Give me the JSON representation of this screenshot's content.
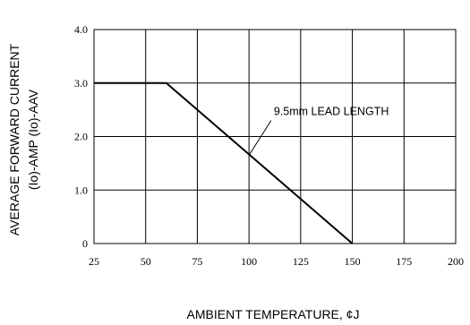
{
  "chart_data": {
    "type": "line",
    "title": "",
    "xlabel": "AMBIENT TEMPERATURE, ¢J",
    "ylabel_line1": "AVERAGE FORWARD CURRENT",
    "ylabel_line2": "(Io)-AMP (Io)-AAV",
    "xlim": [
      25,
      200
    ],
    "ylim": [
      0,
      4.0
    ],
    "x_ticks": [
      25,
      50,
      75,
      100,
      125,
      150,
      175,
      200
    ],
    "x_tick_labels": [
      "25",
      "50",
      "75",
      "100",
      "125",
      "150",
      "175",
      "200"
    ],
    "y_ticks": [
      0,
      1.0,
      2.0,
      3.0,
      4.0
    ],
    "y_tick_labels": [
      "0",
      "1.0",
      "2.0",
      "3.0",
      "4.0"
    ],
    "grid": true,
    "series": [
      {
        "name": "",
        "x": [
          25,
          60,
          150
        ],
        "y": [
          3.0,
          3.0,
          0
        ]
      }
    ],
    "annotations": [
      {
        "text": "9.5mm LEAD LENGTH",
        "x": 112,
        "y": 2.4,
        "arrow_to_x": 100,
        "arrow_to_y": 1.65
      }
    ],
    "line_color": "#000000"
  }
}
